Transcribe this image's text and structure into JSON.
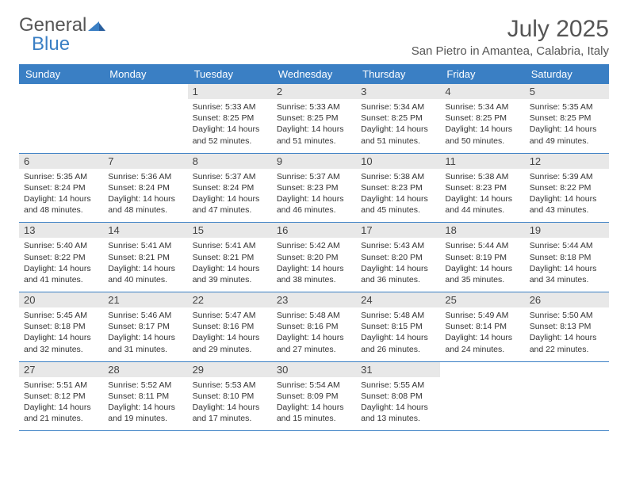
{
  "logo": {
    "part1": "General",
    "part2": "Blue"
  },
  "title": "July 2025",
  "location": "San Pietro in Amantea, Calabria, Italy",
  "colors": {
    "header_bg": "#3a7fc4",
    "daynum_bg": "#e8e8e8",
    "text": "#333333",
    "title_text": "#555555",
    "rule": "#3a7fc4"
  },
  "weekdays": [
    "Sunday",
    "Monday",
    "Tuesday",
    "Wednesday",
    "Thursday",
    "Friday",
    "Saturday"
  ],
  "weeks": [
    [
      null,
      null,
      {
        "n": "1",
        "sr": "Sunrise: 5:33 AM",
        "ss": "Sunset: 8:25 PM",
        "d1": "Daylight: 14 hours",
        "d2": "and 52 minutes."
      },
      {
        "n": "2",
        "sr": "Sunrise: 5:33 AM",
        "ss": "Sunset: 8:25 PM",
        "d1": "Daylight: 14 hours",
        "d2": "and 51 minutes."
      },
      {
        "n": "3",
        "sr": "Sunrise: 5:34 AM",
        "ss": "Sunset: 8:25 PM",
        "d1": "Daylight: 14 hours",
        "d2": "and 51 minutes."
      },
      {
        "n": "4",
        "sr": "Sunrise: 5:34 AM",
        "ss": "Sunset: 8:25 PM",
        "d1": "Daylight: 14 hours",
        "d2": "and 50 minutes."
      },
      {
        "n": "5",
        "sr": "Sunrise: 5:35 AM",
        "ss": "Sunset: 8:25 PM",
        "d1": "Daylight: 14 hours",
        "d2": "and 49 minutes."
      }
    ],
    [
      {
        "n": "6",
        "sr": "Sunrise: 5:35 AM",
        "ss": "Sunset: 8:24 PM",
        "d1": "Daylight: 14 hours",
        "d2": "and 48 minutes."
      },
      {
        "n": "7",
        "sr": "Sunrise: 5:36 AM",
        "ss": "Sunset: 8:24 PM",
        "d1": "Daylight: 14 hours",
        "d2": "and 48 minutes."
      },
      {
        "n": "8",
        "sr": "Sunrise: 5:37 AM",
        "ss": "Sunset: 8:24 PM",
        "d1": "Daylight: 14 hours",
        "d2": "and 47 minutes."
      },
      {
        "n": "9",
        "sr": "Sunrise: 5:37 AM",
        "ss": "Sunset: 8:23 PM",
        "d1": "Daylight: 14 hours",
        "d2": "and 46 minutes."
      },
      {
        "n": "10",
        "sr": "Sunrise: 5:38 AM",
        "ss": "Sunset: 8:23 PM",
        "d1": "Daylight: 14 hours",
        "d2": "and 45 minutes."
      },
      {
        "n": "11",
        "sr": "Sunrise: 5:38 AM",
        "ss": "Sunset: 8:23 PM",
        "d1": "Daylight: 14 hours",
        "d2": "and 44 minutes."
      },
      {
        "n": "12",
        "sr": "Sunrise: 5:39 AM",
        "ss": "Sunset: 8:22 PM",
        "d1": "Daylight: 14 hours",
        "d2": "and 43 minutes."
      }
    ],
    [
      {
        "n": "13",
        "sr": "Sunrise: 5:40 AM",
        "ss": "Sunset: 8:22 PM",
        "d1": "Daylight: 14 hours",
        "d2": "and 41 minutes."
      },
      {
        "n": "14",
        "sr": "Sunrise: 5:41 AM",
        "ss": "Sunset: 8:21 PM",
        "d1": "Daylight: 14 hours",
        "d2": "and 40 minutes."
      },
      {
        "n": "15",
        "sr": "Sunrise: 5:41 AM",
        "ss": "Sunset: 8:21 PM",
        "d1": "Daylight: 14 hours",
        "d2": "and 39 minutes."
      },
      {
        "n": "16",
        "sr": "Sunrise: 5:42 AM",
        "ss": "Sunset: 8:20 PM",
        "d1": "Daylight: 14 hours",
        "d2": "and 38 minutes."
      },
      {
        "n": "17",
        "sr": "Sunrise: 5:43 AM",
        "ss": "Sunset: 8:20 PM",
        "d1": "Daylight: 14 hours",
        "d2": "and 36 minutes."
      },
      {
        "n": "18",
        "sr": "Sunrise: 5:44 AM",
        "ss": "Sunset: 8:19 PM",
        "d1": "Daylight: 14 hours",
        "d2": "and 35 minutes."
      },
      {
        "n": "19",
        "sr": "Sunrise: 5:44 AM",
        "ss": "Sunset: 8:18 PM",
        "d1": "Daylight: 14 hours",
        "d2": "and 34 minutes."
      }
    ],
    [
      {
        "n": "20",
        "sr": "Sunrise: 5:45 AM",
        "ss": "Sunset: 8:18 PM",
        "d1": "Daylight: 14 hours",
        "d2": "and 32 minutes."
      },
      {
        "n": "21",
        "sr": "Sunrise: 5:46 AM",
        "ss": "Sunset: 8:17 PM",
        "d1": "Daylight: 14 hours",
        "d2": "and 31 minutes."
      },
      {
        "n": "22",
        "sr": "Sunrise: 5:47 AM",
        "ss": "Sunset: 8:16 PM",
        "d1": "Daylight: 14 hours",
        "d2": "and 29 minutes."
      },
      {
        "n": "23",
        "sr": "Sunrise: 5:48 AM",
        "ss": "Sunset: 8:16 PM",
        "d1": "Daylight: 14 hours",
        "d2": "and 27 minutes."
      },
      {
        "n": "24",
        "sr": "Sunrise: 5:48 AM",
        "ss": "Sunset: 8:15 PM",
        "d1": "Daylight: 14 hours",
        "d2": "and 26 minutes."
      },
      {
        "n": "25",
        "sr": "Sunrise: 5:49 AM",
        "ss": "Sunset: 8:14 PM",
        "d1": "Daylight: 14 hours",
        "d2": "and 24 minutes."
      },
      {
        "n": "26",
        "sr": "Sunrise: 5:50 AM",
        "ss": "Sunset: 8:13 PM",
        "d1": "Daylight: 14 hours",
        "d2": "and 22 minutes."
      }
    ],
    [
      {
        "n": "27",
        "sr": "Sunrise: 5:51 AM",
        "ss": "Sunset: 8:12 PM",
        "d1": "Daylight: 14 hours",
        "d2": "and 21 minutes."
      },
      {
        "n": "28",
        "sr": "Sunrise: 5:52 AM",
        "ss": "Sunset: 8:11 PM",
        "d1": "Daylight: 14 hours",
        "d2": "and 19 minutes."
      },
      {
        "n": "29",
        "sr": "Sunrise: 5:53 AM",
        "ss": "Sunset: 8:10 PM",
        "d1": "Daylight: 14 hours",
        "d2": "and 17 minutes."
      },
      {
        "n": "30",
        "sr": "Sunrise: 5:54 AM",
        "ss": "Sunset: 8:09 PM",
        "d1": "Daylight: 14 hours",
        "d2": "and 15 minutes."
      },
      {
        "n": "31",
        "sr": "Sunrise: 5:55 AM",
        "ss": "Sunset: 8:08 PM",
        "d1": "Daylight: 14 hours",
        "d2": "and 13 minutes."
      },
      null,
      null
    ]
  ]
}
